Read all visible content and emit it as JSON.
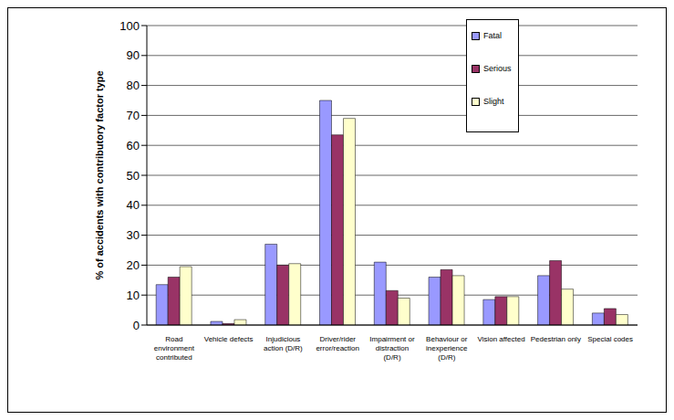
{
  "chart_data": {
    "type": "bar",
    "y_label": "% of accidents with contributory factor type",
    "categories": [
      "Road environment contributed",
      "Vehicle defects",
      "Injudicious action (D/R)",
      "Driver/rider error/reaction",
      "Impairment or distraction (D/R)",
      "Behaviour or inexperience (D/R)",
      "Vision affected",
      "Pedestrian only",
      "Special codes"
    ],
    "series": [
      {
        "name": "Fatal",
        "color": "#9999ff",
        "values": [
          13.5,
          1.2,
          27,
          75,
          21,
          16,
          8.5,
          16.5,
          4
        ]
      },
      {
        "name": "Serious",
        "color": "#993366",
        "values": [
          16,
          0.5,
          20,
          63.5,
          11.5,
          18.5,
          9.5,
          21.5,
          5.5
        ]
      },
      {
        "name": "Slight",
        "color": "#ffffcc",
        "values": [
          19.5,
          1.8,
          20.5,
          69,
          9,
          16.5,
          9.5,
          12,
          3.5
        ]
      }
    ],
    "ylim": [
      0,
      100
    ],
    "yticks": [
      0,
      10,
      20,
      30,
      40,
      50,
      60,
      70,
      80,
      90,
      100
    ],
    "grid": true,
    "legend": "upper right"
  }
}
